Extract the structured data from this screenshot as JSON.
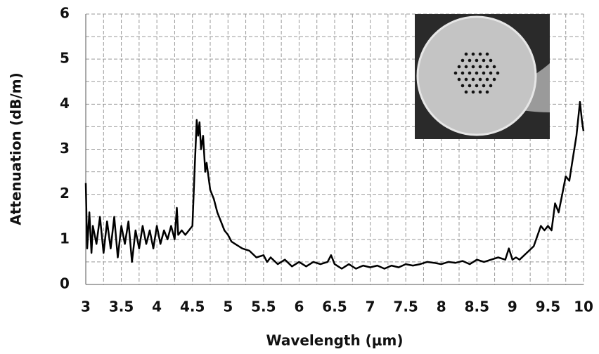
{
  "chart_data": {
    "type": "line",
    "x_label": "Wavelength (μm)",
    "y_label": "Attenuation  (dB/m)",
    "xlim": [
      3,
      10
    ],
    "ylim": [
      0,
      6
    ],
    "xticks": [
      3,
      3.5,
      4,
      4.5,
      5,
      5.5,
      6,
      6.5,
      7,
      7.5,
      8,
      8.5,
      9,
      9.5,
      10
    ],
    "yticks": [
      0,
      1,
      2,
      3,
      4,
      5,
      6
    ],
    "grid": true,
    "xgrid": [
      3.25,
      3.5,
      3.75,
      4,
      4.25,
      4.5,
      4.75,
      5,
      5.25,
      5.5,
      5.75,
      6,
      6.25,
      6.5,
      6.75,
      7,
      7.25,
      7.5,
      7.75,
      8,
      8.25,
      8.5,
      8.75,
      9,
      9.25,
      9.5,
      9.75,
      10
    ],
    "ygrid": [
      0.5,
      1,
      1.5,
      2,
      2.5,
      3,
      3.5,
      4,
      4.5,
      5,
      5.5,
      6
    ],
    "series": [
      {
        "color": "#000000",
        "x": [
          3.0,
          3.02,
          3.05,
          3.08,
          3.1,
          3.15,
          3.2,
          3.25,
          3.3,
          3.35,
          3.4,
          3.45,
          3.5,
          3.55,
          3.6,
          3.65,
          3.7,
          3.75,
          3.8,
          3.85,
          3.9,
          3.95,
          4.0,
          4.05,
          4.1,
          4.15,
          4.2,
          4.25,
          4.28,
          4.3,
          4.35,
          4.4,
          4.45,
          4.5,
          4.53,
          4.56,
          4.58,
          4.6,
          4.62,
          4.65,
          4.68,
          4.7,
          4.75,
          4.8,
          4.85,
          4.9,
          4.95,
          5.0,
          5.05,
          5.1,
          5.15,
          5.2,
          5.3,
          5.4,
          5.5,
          5.55,
          5.6,
          5.7,
          5.8,
          5.9,
          6.0,
          6.1,
          6.2,
          6.3,
          6.4,
          6.45,
          6.5,
          6.6,
          6.7,
          6.8,
          6.9,
          7.0,
          7.1,
          7.2,
          7.3,
          7.4,
          7.5,
          7.6,
          7.7,
          7.8,
          7.9,
          8.0,
          8.1,
          8.2,
          8.3,
          8.4,
          8.5,
          8.6,
          8.7,
          8.8,
          8.9,
          8.95,
          9.0,
          9.05,
          9.1,
          9.2,
          9.3,
          9.4,
          9.45,
          9.5,
          9.55,
          9.6,
          9.65,
          9.7,
          9.75,
          9.8,
          9.85,
          9.9,
          9.95,
          9.98,
          10.0
        ],
        "values": [
          2.25,
          0.8,
          1.6,
          0.7,
          1.3,
          0.9,
          1.5,
          0.7,
          1.4,
          0.8,
          1.5,
          0.6,
          1.3,
          0.9,
          1.4,
          0.5,
          1.2,
          0.8,
          1.3,
          0.9,
          1.2,
          0.8,
          1.3,
          0.9,
          1.2,
          1.0,
          1.3,
          1.0,
          1.7,
          1.1,
          1.2,
          1.1,
          1.2,
          1.3,
          2.5,
          3.65,
          3.3,
          3.6,
          3.0,
          3.3,
          2.5,
          2.7,
          2.1,
          1.9,
          1.6,
          1.4,
          1.2,
          1.1,
          0.95,
          0.9,
          0.85,
          0.8,
          0.75,
          0.6,
          0.65,
          0.5,
          0.6,
          0.45,
          0.55,
          0.4,
          0.5,
          0.4,
          0.5,
          0.45,
          0.5,
          0.65,
          0.45,
          0.35,
          0.45,
          0.35,
          0.42,
          0.38,
          0.42,
          0.35,
          0.42,
          0.38,
          0.45,
          0.42,
          0.45,
          0.5,
          0.48,
          0.45,
          0.5,
          0.48,
          0.52,
          0.45,
          0.55,
          0.5,
          0.55,
          0.6,
          0.55,
          0.8,
          0.55,
          0.6,
          0.55,
          0.7,
          0.85,
          1.3,
          1.2,
          1.3,
          1.2,
          1.8,
          1.6,
          2.0,
          2.4,
          2.3,
          2.8,
          3.3,
          4.05,
          3.6,
          3.4
        ]
      }
    ]
  }
}
